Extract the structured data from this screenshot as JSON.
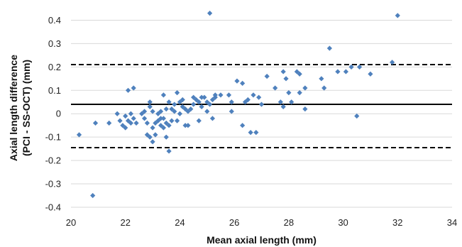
{
  "chart_data": {
    "type": "scatter",
    "title": "",
    "xlabel": "Mean axial length (mm)",
    "ylabel_lines": [
      "Axial length difference",
      "(PCI - SS-OCT) (mm)"
    ],
    "xlim": [
      20,
      34
    ],
    "ylim": [
      -0.4,
      0.45
    ],
    "x_ticks": [
      20,
      22,
      24,
      26,
      28,
      30,
      32,
      34
    ],
    "y_ticks": [
      -0.4,
      -0.3,
      -0.2,
      -0.1,
      0,
      0.1,
      0.2,
      0.3,
      0.4
    ],
    "y_tick_labels": [
      "-0.4",
      "-0.3",
      "-0.2",
      "-0.1",
      "0",
      "0.1",
      "0.2",
      "0.3",
      "0.4"
    ],
    "grid": "horizontal",
    "marker": "diamond",
    "marker_color": "#4f81bd",
    "mean_line": 0.04,
    "limits_of_agreement": [
      0.21,
      -0.145
    ],
    "points": [
      [
        20.3,
        -0.09
      ],
      [
        20.8,
        -0.35
      ],
      [
        20.9,
        -0.04
      ],
      [
        21.4,
        -0.04
      ],
      [
        21.7,
        0.0
      ],
      [
        21.8,
        -0.03
      ],
      [
        21.9,
        -0.05
      ],
      [
        22.0,
        -0.06
      ],
      [
        22.0,
        -0.01
      ],
      [
        22.1,
        -0.03
      ],
      [
        22.1,
        0.1
      ],
      [
        22.2,
        -0.04
      ],
      [
        22.2,
        -0.0
      ],
      [
        22.3,
        0.11
      ],
      [
        22.3,
        -0.02
      ],
      [
        22.4,
        -0.04
      ],
      [
        22.6,
        0.0
      ],
      [
        22.7,
        0.01
      ],
      [
        22.7,
        -0.02
      ],
      [
        22.8,
        -0.04
      ],
      [
        22.8,
        -0.09
      ],
      [
        22.9,
        0.03
      ],
      [
        22.9,
        0.05
      ],
      [
        22.9,
        -0.1
      ],
      [
        23.0,
        -0.12
      ],
      [
        23.0,
        -0.06
      ],
      [
        23.0,
        0.01
      ],
      [
        23.1,
        -0.09
      ],
      [
        23.1,
        -0.04
      ],
      [
        23.2,
        0.0
      ],
      [
        23.2,
        -0.03
      ],
      [
        23.3,
        -0.05
      ],
      [
        23.3,
        0.01
      ],
      [
        23.3,
        -0.02
      ],
      [
        23.4,
        0.08
      ],
      [
        23.4,
        -0.06
      ],
      [
        23.4,
        -0.02
      ],
      [
        23.5,
        -0.1
      ],
      [
        23.5,
        -0.04
      ],
      [
        23.5,
        0.02
      ],
      [
        23.6,
        -0.16
      ],
      [
        23.6,
        0.05
      ],
      [
        23.6,
        -0.05
      ],
      [
        23.7,
        0.02
      ],
      [
        23.7,
        -0.03
      ],
      [
        23.8,
        0.04
      ],
      [
        23.8,
        0.01
      ],
      [
        23.9,
        -0.03
      ],
      [
        23.9,
        0.09
      ],
      [
        24.0,
        0.05
      ],
      [
        24.0,
        -0.0
      ],
      [
        24.1,
        0.03
      ],
      [
        24.1,
        0.06
      ],
      [
        24.2,
        -0.05
      ],
      [
        24.2,
        0.02
      ],
      [
        24.3,
        -0.05
      ],
      [
        24.3,
        0.01
      ],
      [
        24.4,
        0.02
      ],
      [
        24.5,
        0.07
      ],
      [
        24.5,
        0.04
      ],
      [
        24.6,
        0.06
      ],
      [
        24.7,
        0.05
      ],
      [
        24.7,
        -0.03
      ],
      [
        24.8,
        0.03
      ],
      [
        24.8,
        0.07
      ],
      [
        24.9,
        0.07
      ],
      [
        25.0,
        0.05
      ],
      [
        25.0,
        0.01
      ],
      [
        25.1,
        0.43
      ],
      [
        25.1,
        0.04
      ],
      [
        25.2,
        0.06
      ],
      [
        25.2,
        -0.02
      ],
      [
        25.3,
        0.07
      ],
      [
        25.3,
        0.08
      ],
      [
        25.5,
        0.08
      ],
      [
        25.8,
        0.08
      ],
      [
        25.9,
        0.01
      ],
      [
        25.9,
        0.05
      ],
      [
        26.1,
        0.14
      ],
      [
        26.3,
        -0.05
      ],
      [
        26.3,
        0.13
      ],
      [
        26.4,
        0.05
      ],
      [
        26.5,
        0.06
      ],
      [
        26.6,
        -0.08
      ],
      [
        26.7,
        0.08
      ],
      [
        26.8,
        -0.08
      ],
      [
        26.9,
        0.07
      ],
      [
        27.0,
        0.04
      ],
      [
        27.2,
        0.16
      ],
      [
        27.5,
        0.11
      ],
      [
        27.7,
        0.05
      ],
      [
        27.8,
        0.03
      ],
      [
        27.8,
        0.18
      ],
      [
        27.9,
        0.15
      ],
      [
        28.0,
        0.09
      ],
      [
        28.1,
        0.05
      ],
      [
        28.3,
        0.18
      ],
      [
        28.4,
        0.09
      ],
      [
        28.4,
        0.17
      ],
      [
        28.6,
        0.02
      ],
      [
        28.6,
        0.11
      ],
      [
        29.2,
        0.15
      ],
      [
        29.3,
        0.11
      ],
      [
        29.5,
        0.28
      ],
      [
        29.8,
        0.18
      ],
      [
        30.1,
        0.18
      ],
      [
        30.3,
        0.2
      ],
      [
        30.5,
        -0.01
      ],
      [
        30.6,
        0.2
      ],
      [
        31.0,
        0.17
      ],
      [
        31.8,
        0.22
      ],
      [
        32.0,
        0.42
      ]
    ]
  }
}
